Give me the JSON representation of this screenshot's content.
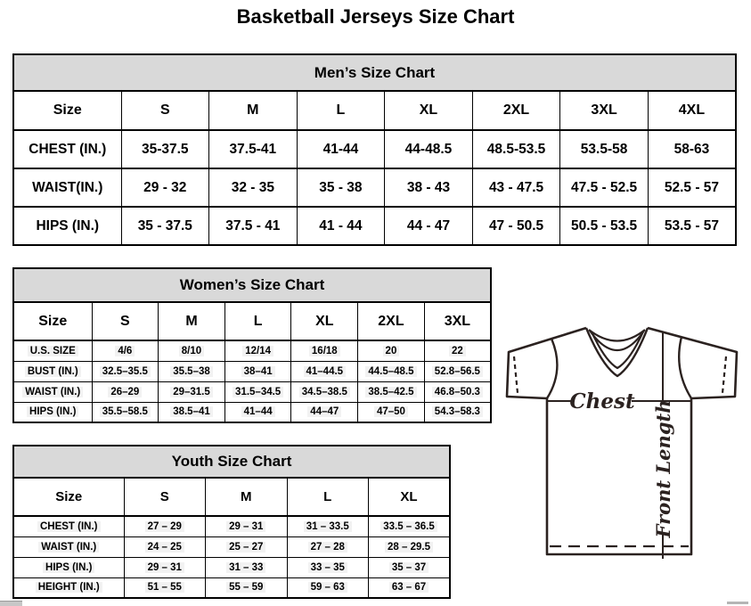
{
  "page_title": "Basketball Jerseys Size Chart",
  "colors": {
    "table_band_gray": "#d9d9d9",
    "table_border": "#000000",
    "jersey_outline": "#2b2220",
    "cell_highlight": "#f2f2f2"
  },
  "tables": {
    "men": {
      "title": "Men’s Size Chart",
      "columns": [
        "Size",
        "S",
        "M",
        "L",
        "XL",
        "2XL",
        "3XL",
        "4XL"
      ],
      "rows": [
        {
          "label": "CHEST (IN.)",
          "values": [
            "35-37.5",
            "37.5-41",
            "41-44",
            "44-48.5",
            "48.5-53.5",
            "53.5-58",
            "58-63"
          ]
        },
        {
          "label": "WAIST(IN.)",
          "values": [
            "29 - 32",
            "32 - 35",
            "35 - 38",
            "38 - 43",
            "43 - 47.5",
            "47.5 - 52.5",
            "52.5 - 57"
          ]
        },
        {
          "label": "HIPS (IN.)",
          "values": [
            "35 - 37.5",
            "37.5 - 41",
            "41 - 44",
            "44 - 47",
            "47 - 50.5",
            "50.5 - 53.5",
            "53.5 - 57"
          ]
        }
      ]
    },
    "women": {
      "title": "Women’s Size Chart",
      "columns": [
        "Size",
        "S",
        "M",
        "L",
        "XL",
        "2XL",
        "3XL"
      ],
      "rows": [
        {
          "label": "U.S. SIZE",
          "values": [
            "4/6",
            "8/10",
            "12/14",
            "16/18",
            "20",
            "22"
          ]
        },
        {
          "label": "BUST (IN.)",
          "values": [
            "32.5–35.5",
            "35.5–38",
            "38–41",
            "41–44.5",
            "44.5–48.5",
            "52.8–56.5"
          ]
        },
        {
          "label": "WAIST (IN.)",
          "values": [
            "26–29",
            "29–31.5",
            "31.5–34.5",
            "34.5–38.5",
            "38.5–42.5",
            "46.8–50.3"
          ]
        },
        {
          "label": "HIPS (IN.)",
          "values": [
            "35.5–58.5",
            "38.5–41",
            "41–44",
            "44–47",
            "47–50",
            "54.3–58.3"
          ]
        }
      ]
    },
    "youth": {
      "title": "Youth Size Chart",
      "columns": [
        "Size",
        "S",
        "M",
        "L",
        "XL"
      ],
      "rows": [
        {
          "label": "CHEST (IN.)",
          "values": [
            "27 – 29",
            "29 – 31",
            "31 – 33.5",
            "33.5 – 36.5"
          ]
        },
        {
          "label": "WAIST (IN.)",
          "values": [
            "24 – 25",
            "25 – 27",
            "27 – 28",
            "28 – 29.5"
          ]
        },
        {
          "label": "HIPS (IN.)",
          "values": [
            "29 – 31",
            "31 – 33",
            "33 – 35",
            "35 – 37"
          ]
        },
        {
          "label": "HEIGHT (IN.)",
          "values": [
            "51 – 55",
            "55 – 59",
            "59 – 63",
            "63 – 67"
          ]
        }
      ]
    }
  },
  "diagram": {
    "chest_label": "Chest",
    "front_length_label": "Front Length"
  }
}
